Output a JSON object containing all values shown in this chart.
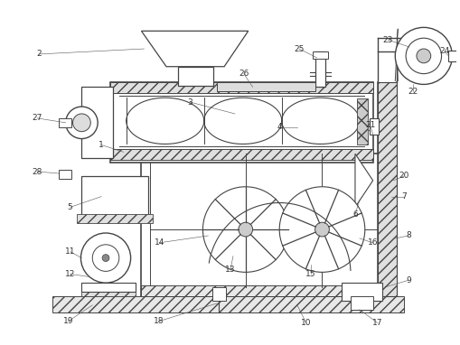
{
  "bg_color": "#ffffff",
  "lc": "#444444",
  "fig_width": 5.09,
  "fig_height": 3.82,
  "dpi": 100
}
